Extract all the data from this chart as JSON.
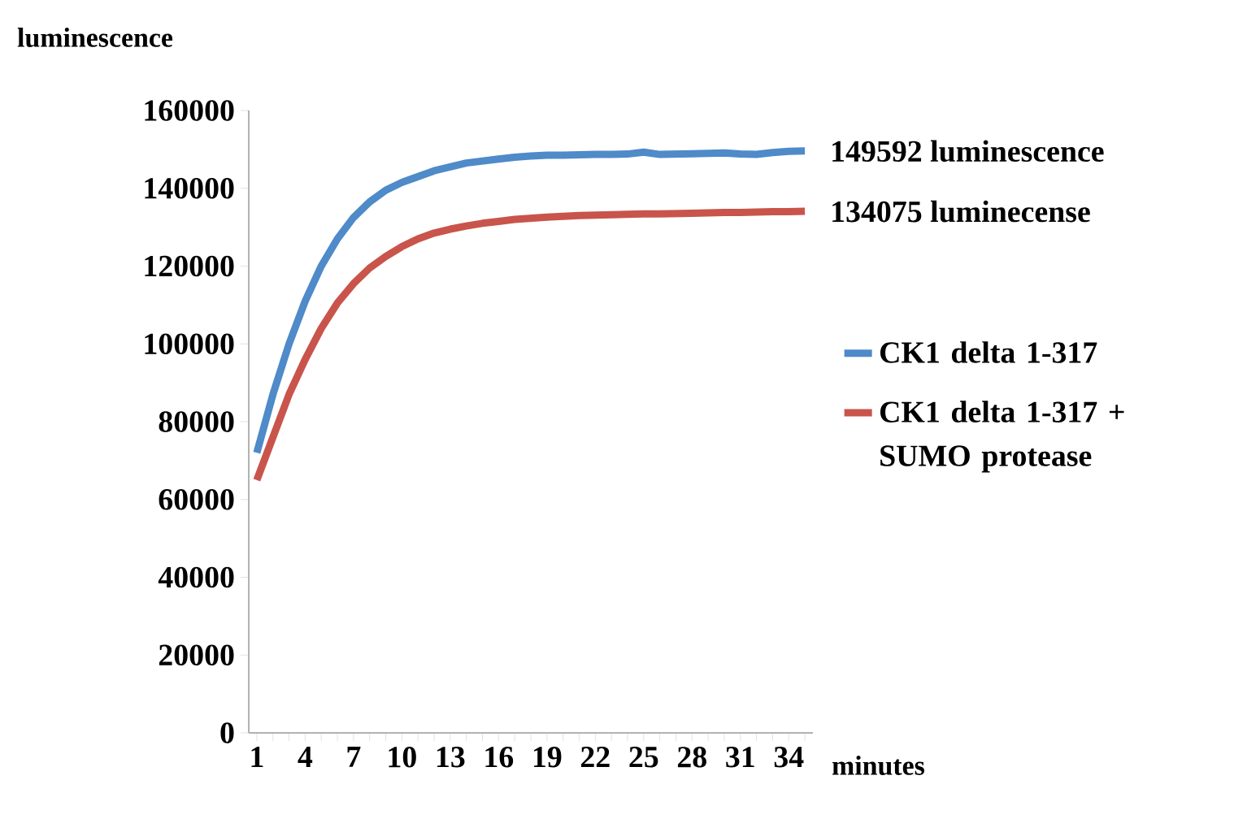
{
  "chart_data": {
    "type": "line",
    "ylabel": "luminescence",
    "xlabel": "minutes",
    "categories": [
      "1",
      null,
      null,
      "4",
      null,
      null,
      "7",
      null,
      null,
      "10",
      null,
      null,
      "13",
      null,
      null,
      "16",
      null,
      null,
      "19",
      null,
      null,
      "22",
      null,
      null,
      "25",
      null,
      null,
      "28",
      null,
      null,
      "31",
      null,
      null,
      "34",
      null
    ],
    "series": [
      {
        "name": "CK1 delta 1-317",
        "color": "#4f8ac9",
        "values": [
          72000,
          87000,
          100000,
          111000,
          120000,
          127000,
          132500,
          136500,
          139500,
          141500,
          143000,
          144500,
          145500,
          146500,
          147000,
          147500,
          148000,
          148300,
          148500,
          148500,
          148600,
          148700,
          148700,
          148800,
          149300,
          148700,
          148800,
          148900,
          149000,
          149100,
          148800,
          148700,
          149200,
          149500,
          149592
        ]
      },
      {
        "name": "CK1 delta 1-317 + SUMO protease",
        "color": "#c9544b",
        "values": [
          65000,
          76000,
          87000,
          96000,
          104000,
          110500,
          115500,
          119500,
          122500,
          125000,
          127000,
          128500,
          129500,
          130300,
          131000,
          131500,
          132000,
          132300,
          132600,
          132800,
          133000,
          133100,
          133200,
          133300,
          133400,
          133400,
          133500,
          133600,
          133700,
          133800,
          133800,
          133900,
          134000,
          134000,
          134075
        ]
      }
    ],
    "annotations": [
      "149592 luminescence",
      "134075 luminecense"
    ],
    "ylim": [
      0,
      160000
    ],
    "yticks": [
      0,
      20000,
      40000,
      60000,
      80000,
      100000,
      120000,
      140000,
      160000
    ],
    "legend": "right",
    "marker": "none",
    "line_style": "solid",
    "grid": false
  }
}
